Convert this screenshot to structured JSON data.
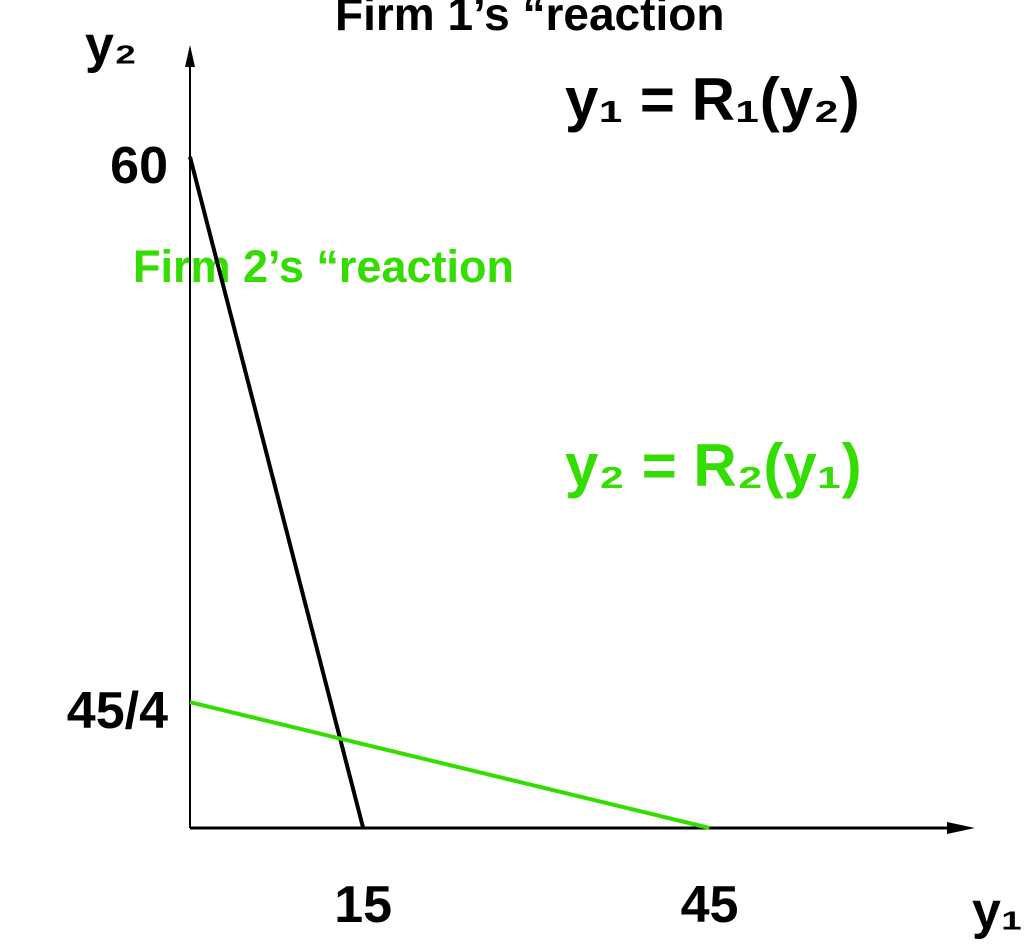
{
  "chart_data": {
    "type": "line",
    "title": "Firm 1’s “reaction",
    "equation_1": "y₁ = R₁(y₂)",
    "subtitle": "Firm 2’s “reaction",
    "equation_2": "y₂ = R₂(y₁)",
    "x_label": "y₁",
    "y_label": "y₂",
    "xlim": [
      0,
      68
    ],
    "ylim": [
      0,
      70
    ],
    "xticks": [
      15,
      45
    ],
    "yticks": [
      60,
      {
        "value": 11.25,
        "label": "45/4"
      }
    ],
    "series": [
      {
        "color": "#000000",
        "x": [
          0,
          15
        ],
        "values": [
          60,
          0
        ]
      },
      {
        "color": "#33dd00",
        "x": [
          0,
          45
        ],
        "values": [
          11.25,
          0
        ]
      }
    ]
  }
}
